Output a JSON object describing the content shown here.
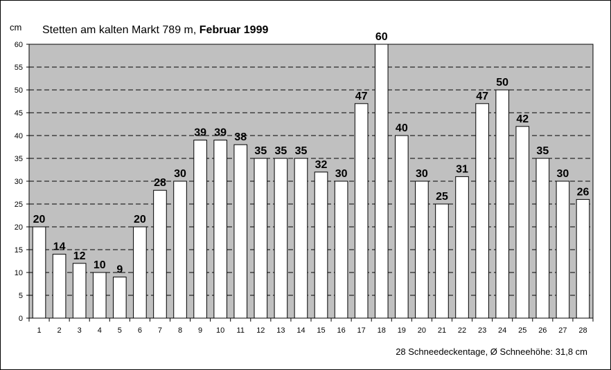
{
  "chart_data": {
    "type": "bar",
    "title_prefix": "Stetten am kalten Markt  789 m, ",
    "title_bold": "Februar 1999",
    "ylabel": "cm",
    "ylim": [
      0,
      60
    ],
    "ytick_step": 5,
    "grid": "dashed horizontal",
    "categories": [
      "1",
      "2",
      "3",
      "4",
      "5",
      "6",
      "7",
      "8",
      "9",
      "10",
      "11",
      "12",
      "13",
      "14",
      "15",
      "16",
      "17",
      "18",
      "19",
      "20",
      "21",
      "22",
      "23",
      "24",
      "25",
      "26",
      "27",
      "28"
    ],
    "values": [
      20,
      14,
      12,
      10,
      9,
      20,
      28,
      30,
      39,
      39,
      38,
      35,
      35,
      35,
      32,
      30,
      47,
      60,
      40,
      30,
      25,
      31,
      47,
      50,
      42,
      35,
      30,
      26
    ],
    "footer": "28 Schneedeckentage,  Ø Schneehöhe:  31,8 cm",
    "colors": {
      "plot_bg": "#c0c0c0",
      "bar_fill": "#ffffff",
      "bar_stroke": "#000000",
      "grid": "#000000"
    }
  }
}
